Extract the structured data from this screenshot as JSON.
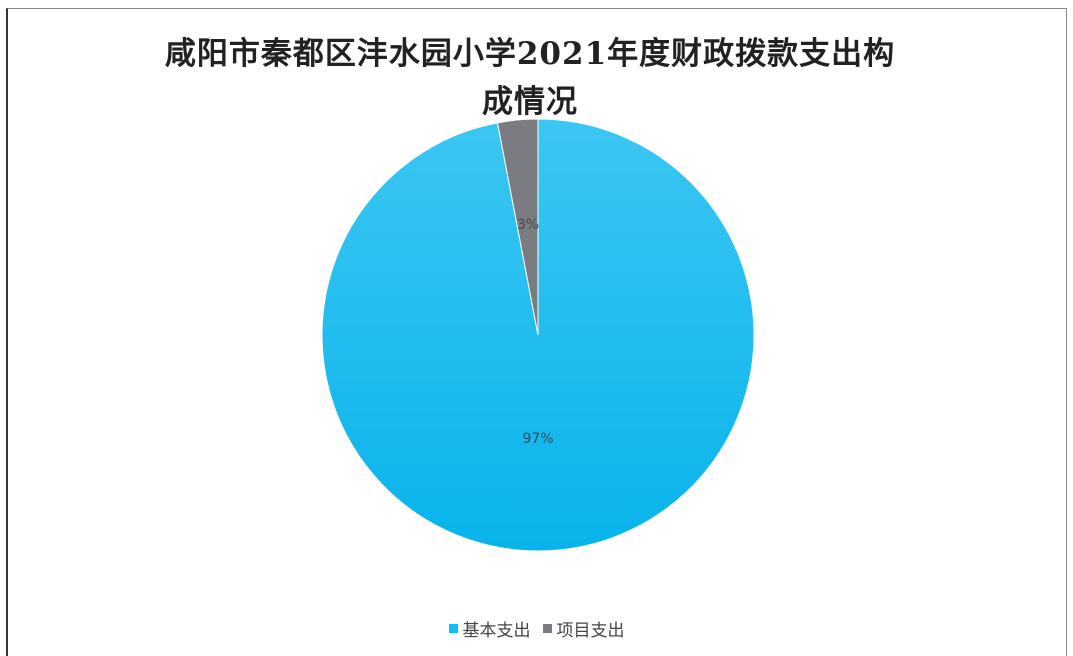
{
  "chart_data": {
    "type": "pie",
    "title": "咸阳市秦都区沣水园小学2021年度财政拨款支出构成情况",
    "title_lines": [
      "咸阳市秦都区沣水园小学2021年度财政拨款支出构",
      "成情况"
    ],
    "categories": [
      "基本支出",
      "项目支出"
    ],
    "values": [
      97,
      3
    ],
    "data_labels": [
      "97%",
      "3%"
    ],
    "colors": [
      "#0fbff5",
      "#7a7c82"
    ],
    "legend_position": "bottom",
    "start_angle": "12 o'clock, counterclockwise for 项目支出"
  }
}
